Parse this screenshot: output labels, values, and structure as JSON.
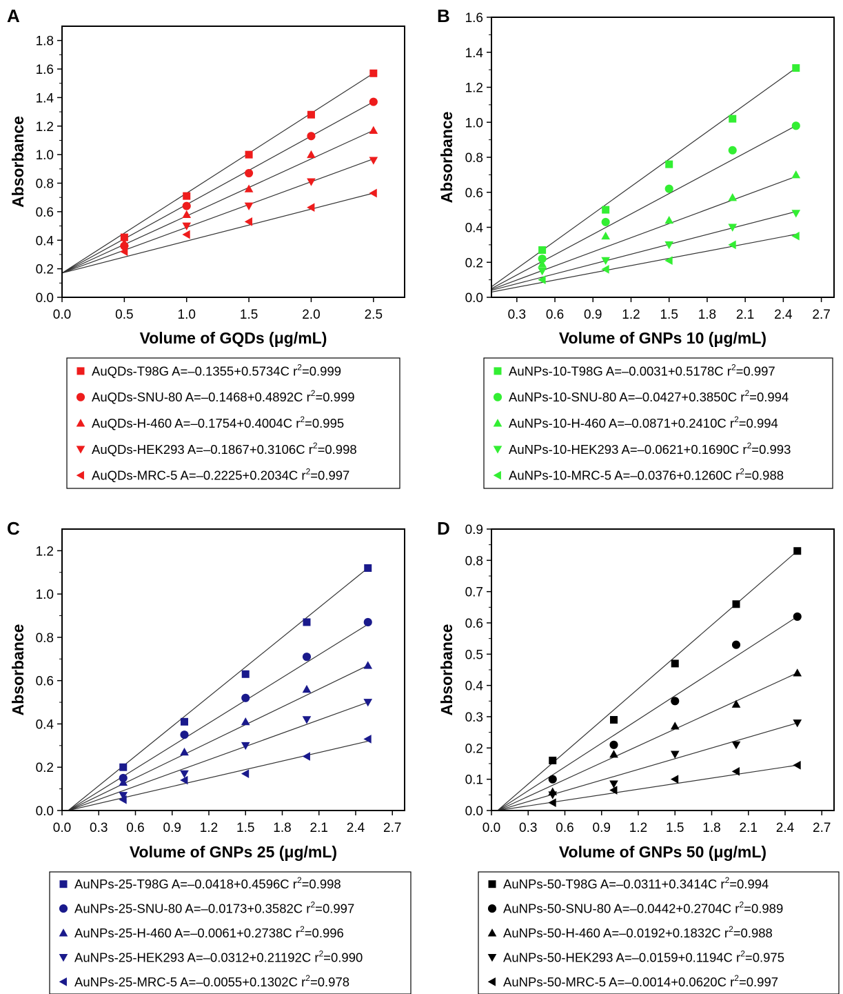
{
  "chart_data": [
    {
      "type": "scatter",
      "panel": "A",
      "color": "#ee1c1c",
      "xlabel": "Volume of GQDs (μg/mL)",
      "ylabel": "Absorbance",
      "xlim": [
        0.0,
        2.75
      ],
      "ylim": [
        0.0,
        1.9
      ],
      "xticks": [
        0.0,
        0.5,
        1.0,
        1.5,
        2.0,
        2.5
      ],
      "xtick_labels": [
        "0.0",
        "0.5",
        "1.0",
        "1.5",
        "2.0",
        "2.5"
      ],
      "yticks": [
        0.0,
        0.2,
        0.4,
        0.6,
        0.8,
        1.0,
        1.2,
        1.4,
        1.6,
        1.8
      ],
      "ytick_labels": [
        "0.0",
        "0.2",
        "0.4",
        "0.6",
        "0.8",
        "1.0",
        "1.2",
        "1.4",
        "1.6",
        "1.8"
      ],
      "x": [
        0.5,
        1.0,
        1.5,
        2.0,
        2.5
      ],
      "series": [
        {
          "name": "AuQDs-T98G",
          "marker": "square",
          "values": [
            0.42,
            0.71,
            1.0,
            1.28,
            1.57
          ],
          "fit": [
            [
              0.0,
              0.17
            ],
            [
              2.5,
              1.57
            ]
          ],
          "legend_main": "AuQDs-T98G A=–0.1355+0.5734C r",
          "legend_sup": "2",
          "legend_tail": "=0.999"
        },
        {
          "name": "AuQDs-SNU-80",
          "marker": "circle",
          "values": [
            0.36,
            0.64,
            0.87,
            1.13,
            1.37
          ],
          "fit": [
            [
              0.0,
              0.17
            ],
            [
              2.5,
              1.37
            ]
          ],
          "legend_main": "AuQDs-SNU-80 A=–0.1468+0.4892C r",
          "legend_sup": "2",
          "legend_tail": "=0.999"
        },
        {
          "name": "AuQDs-H-460",
          "marker": "triangle-up",
          "values": [
            0.38,
            0.58,
            0.76,
            1.0,
            1.17
          ],
          "fit": [
            [
              0.0,
              0.17
            ],
            [
              2.5,
              1.17
            ]
          ],
          "legend_main": "AuQDs-H-460 A=–0.1754+0.4004C r",
          "legend_sup": "2",
          "legend_tail": "=0.995"
        },
        {
          "name": "AuQDs-HEK293",
          "marker": "triangle-down",
          "values": [
            0.34,
            0.5,
            0.64,
            0.81,
            0.96
          ],
          "fit": [
            [
              0.0,
              0.17
            ],
            [
              2.5,
              0.97
            ]
          ],
          "legend_main": "AuQDs-HEK293 A=–0.1867+0.3106C r",
          "legend_sup": "2",
          "legend_tail": "=0.998"
        },
        {
          "name": "AuQDs-MRC-5",
          "marker": "triangle-left",
          "values": [
            0.32,
            0.44,
            0.53,
            0.63,
            0.73
          ],
          "fit": [
            [
              0.0,
              0.17
            ],
            [
              2.5,
              0.73
            ]
          ],
          "legend_main": "AuQDs-MRC-5 A=–0.2225+0.2034C r",
          "legend_sup": "2",
          "legend_tail": "=0.997"
        }
      ]
    },
    {
      "type": "scatter",
      "panel": "B",
      "color": "#33ee33",
      "xlabel": "Volume of GNPs 10 (μg/mL)",
      "ylabel": "Absorbance",
      "xlim": [
        0.1,
        2.8
      ],
      "ylim": [
        0.0,
        1.6
      ],
      "xticks": [
        0.3,
        0.6,
        0.9,
        1.2,
        1.5,
        1.8,
        2.1,
        2.4,
        2.7
      ],
      "xtick_labels": [
        "0.3",
        "0.6",
        "0.9",
        "1.2",
        "1.5",
        "1.8",
        "2.1",
        "2.4",
        "2.7"
      ],
      "yticks": [
        0.0,
        0.2,
        0.4,
        0.6,
        0.8,
        1.0,
        1.2,
        1.4,
        1.6
      ],
      "ytick_labels": [
        "0.0",
        "0.2",
        "0.4",
        "0.6",
        "0.8",
        "1.0",
        "1.2",
        "1.4",
        "1.6"
      ],
      "x": [
        0.5,
        1.0,
        1.5,
        2.0,
        2.5
      ],
      "series": [
        {
          "name": "AuNPs-10-T98G",
          "marker": "square",
          "values": [
            0.27,
            0.5,
            0.76,
            1.02,
            1.31
          ],
          "fit": [
            [
              0.1,
              0.06
            ],
            [
              2.5,
              1.31
            ]
          ],
          "legend_main": "AuNPs-10-T98G A=–0.0031+0.5178C r",
          "legend_sup": "2",
          "legend_tail": "=0.997"
        },
        {
          "name": "AuNPs-10-SNU-80",
          "marker": "circle",
          "values": [
            0.22,
            0.43,
            0.62,
            0.84,
            0.98
          ],
          "fit": [
            [
              0.1,
              0.05
            ],
            [
              2.5,
              0.98
            ]
          ],
          "legend_main": "AuNPs-10-SNU-80 A=–0.0427+0.3850C r",
          "legend_sup": "2",
          "legend_tail": "=0.994"
        },
        {
          "name": "AuNPs-10-H-460",
          "marker": "triangle-up",
          "values": [
            0.19,
            0.35,
            0.44,
            0.57,
            0.7
          ],
          "fit": [
            [
              0.1,
              0.045
            ],
            [
              2.5,
              0.69
            ]
          ],
          "legend_main": "AuNPs-10-H-460 A=–0.0871+0.2410C r",
          "legend_sup": "2",
          "legend_tail": "=0.994"
        },
        {
          "name": "AuNPs-10-HEK293",
          "marker": "triangle-down",
          "values": [
            0.15,
            0.21,
            0.3,
            0.4,
            0.48
          ],
          "fit": [
            [
              0.1,
              0.04
            ],
            [
              2.5,
              0.49
            ]
          ],
          "legend_main": "AuNPs-10-HEK293 A=–0.0621+0.1690C r",
          "legend_sup": "2",
          "legend_tail": "=0.993"
        },
        {
          "name": "AuNPs-10-MRC-5",
          "marker": "triangle-left",
          "values": [
            0.1,
            0.16,
            0.21,
            0.3,
            0.35
          ],
          "fit": [
            [
              0.1,
              0.03
            ],
            [
              2.5,
              0.36
            ]
          ],
          "legend_main": "AuNPs-10-MRC-5 A=–0.0376+0.1260C r",
          "legend_sup": "2",
          "legend_tail": "=0.988"
        }
      ]
    },
    {
      "type": "scatter",
      "panel": "C",
      "color": "#1a1a8c",
      "xlabel": "Volume of GNPs 25 (μg/mL)",
      "ylabel": "Absorbance",
      "xlim": [
        0.0,
        2.8
      ],
      "ylim": [
        0.0,
        1.3
      ],
      "xticks": [
        0.0,
        0.3,
        0.6,
        0.9,
        1.2,
        1.5,
        1.8,
        2.1,
        2.4,
        2.7
      ],
      "xtick_labels": [
        "0.0",
        "0.3",
        "0.6",
        "0.9",
        "1.2",
        "1.5",
        "1.8",
        "2.1",
        "2.4",
        "2.7"
      ],
      "yticks": [
        0.0,
        0.2,
        0.4,
        0.6,
        0.8,
        1.0,
        1.2
      ],
      "ytick_labels": [
        "0.0",
        "0.2",
        "0.4",
        "0.6",
        "0.8",
        "1.0",
        "1.2"
      ],
      "x": [
        0.5,
        1.0,
        1.5,
        2.0,
        2.5
      ],
      "series": [
        {
          "name": "AuNPs-25-T98G",
          "marker": "square",
          "values": [
            0.2,
            0.41,
            0.63,
            0.87,
            1.12
          ],
          "fit": [
            [
              0.05,
              0.0
            ],
            [
              2.5,
              1.12
            ]
          ],
          "legend_main": "AuNPs-25-T98G A=–0.0418+0.4596C r",
          "legend_sup": "2",
          "legend_tail": "=0.998"
        },
        {
          "name": "AuNPs-25-SNU-80",
          "marker": "circle",
          "values": [
            0.15,
            0.35,
            0.52,
            0.71,
            0.87
          ],
          "fit": [
            [
              0.05,
              0.0
            ],
            [
              2.5,
              0.86
            ]
          ],
          "legend_main": "AuNPs-25-SNU-80 A=–0.0173+0.3582C r",
          "legend_sup": "2",
          "legend_tail": "=0.997"
        },
        {
          "name": "AuNPs-25-H-460",
          "marker": "triangle-up",
          "values": [
            0.13,
            0.27,
            0.41,
            0.56,
            0.67
          ],
          "fit": [
            [
              0.05,
              0.0
            ],
            [
              2.5,
              0.67
            ]
          ],
          "legend_main": "AuNPs-25-H-460 A=–0.0061+0.2738C r",
          "legend_sup": "2",
          "legend_tail": "=0.996"
        },
        {
          "name": "AuNPs-25-HEK293",
          "marker": "triangle-down",
          "values": [
            0.07,
            0.17,
            0.3,
            0.42,
            0.5
          ],
          "fit": [
            [
              0.05,
              0.0
            ],
            [
              2.5,
              0.5
            ]
          ],
          "legend_main": "AuNPs-25-HEK293 A=–0.0312+0.21192C r",
          "legend_sup": "2",
          "legend_tail": "=0.990"
        },
        {
          "name": "AuNPs-25-MRC-5",
          "marker": "triangle-left",
          "values": [
            0.05,
            0.14,
            0.17,
            0.25,
            0.33
          ],
          "fit": [
            [
              0.05,
              0.0
            ],
            [
              2.5,
              0.32
            ]
          ],
          "legend_main": "AuNPs-25-MRC-5 A=–0.0055+0.1302C r",
          "legend_sup": "2",
          "legend_tail": "=0.978"
        }
      ]
    },
    {
      "type": "scatter",
      "panel": "D",
      "color": "#000000",
      "xlabel": "Volume of GNPs 50 (μg/mL)",
      "ylabel": "Absorbance",
      "xlim": [
        0.0,
        2.8
      ],
      "ylim": [
        0.0,
        0.9
      ],
      "xticks": [
        0.0,
        0.3,
        0.6,
        0.9,
        1.2,
        1.5,
        1.8,
        2.1,
        2.4,
        2.7
      ],
      "xtick_labels": [
        "0.0",
        "0.3",
        "0.6",
        "0.9",
        "1.2",
        "1.5",
        "1.8",
        "2.1",
        "2.4",
        "2.7"
      ],
      "yticks": [
        0.0,
        0.1,
        0.2,
        0.3,
        0.4,
        0.5,
        0.6,
        0.7,
        0.8,
        0.9
      ],
      "ytick_labels": [
        "0.0",
        "0.1",
        "0.2",
        "0.3",
        "0.4",
        "0.5",
        "0.6",
        "0.7",
        "0.8",
        "0.9"
      ],
      "x": [
        0.5,
        1.0,
        1.5,
        2.0,
        2.5
      ],
      "series": [
        {
          "name": "AuNPs-50-T98G",
          "marker": "square",
          "values": [
            0.16,
            0.29,
            0.47,
            0.66,
            0.83
          ],
          "fit": [
            [
              0.05,
              0.0
            ],
            [
              2.5,
              0.83
            ]
          ],
          "legend_main": "AuNPs-50-T98G A=–0.0311+0.3414C r",
          "legend_sup": "2",
          "legend_tail": "=0.994"
        },
        {
          "name": "AuNPs-50-SNU-80",
          "marker": "circle",
          "values": [
            0.1,
            0.21,
            0.35,
            0.53,
            0.62
          ],
          "fit": [
            [
              0.05,
              0.0
            ],
            [
              2.5,
              0.62
            ]
          ],
          "legend_main": "AuNPs-50-SNU-80 A=–0.0442+0.2704C r",
          "legend_sup": "2",
          "legend_tail": "=0.989"
        },
        {
          "name": "AuNPs-50-H-460",
          "marker": "triangle-up",
          "values": [
            0.06,
            0.18,
            0.27,
            0.34,
            0.44
          ],
          "fit": [
            [
              0.05,
              0.0
            ],
            [
              2.5,
              0.44
            ]
          ],
          "legend_main": "AuNPs-50-H-460 A=–0.0192+0.1832C r",
          "legend_sup": "2",
          "legend_tail": "=0.988"
        },
        {
          "name": "AuNPs-50-HEK293",
          "marker": "triangle-down",
          "values": [
            0.05,
            0.085,
            0.18,
            0.21,
            0.28
          ],
          "fit": [
            [
              0.05,
              0.0
            ],
            [
              2.5,
              0.28
            ]
          ],
          "legend_main": "AuNPs-50-HEK293 A=–0.0159+0.1194C r",
          "legend_sup": "2",
          "legend_tail": "=0.975"
        },
        {
          "name": "AuNPs-50-MRC-5",
          "marker": "triangle-left",
          "values": [
            0.025,
            0.065,
            0.1,
            0.125,
            0.145
          ],
          "fit": [
            [
              0.05,
              0.0
            ],
            [
              2.5,
              0.145
            ]
          ],
          "legend_main": "AuNPs-50-MRC-5 A=–0.0014+0.0620C r",
          "legend_sup": "2",
          "legend_tail": "=0.997"
        }
      ]
    }
  ]
}
